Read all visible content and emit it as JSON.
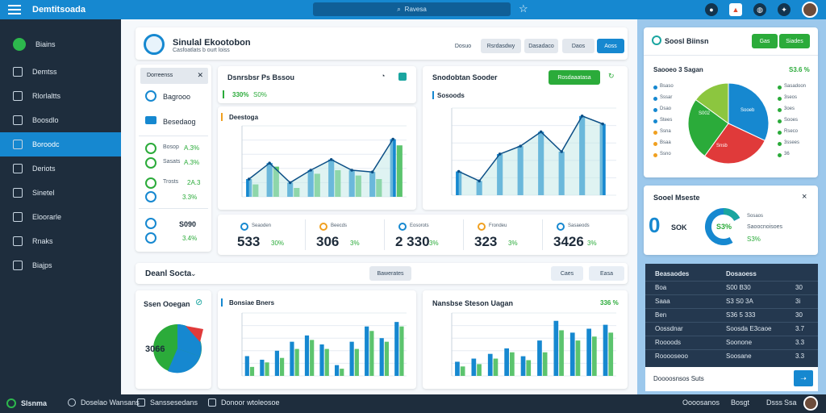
{
  "app": {
    "title": "Demtitsoada",
    "search_placeholder": "Ravesa"
  },
  "sidebar": {
    "items": [
      {
        "label": "Biains",
        "icon": "circle-logo-icon"
      },
      {
        "label": "Demtss",
        "icon": "home-icon"
      },
      {
        "label": "Rlorlaltts",
        "icon": "chart-icon"
      },
      {
        "label": "Boosdlo",
        "icon": "layers-icon"
      },
      {
        "label": "Boroodc",
        "icon": "house-icon"
      },
      {
        "label": "Deriots",
        "icon": "document-icon"
      },
      {
        "label": "Sinetel",
        "icon": "edit-icon"
      },
      {
        "label": "Eloorarle",
        "icon": "folder-icon"
      },
      {
        "label": "Rnaks",
        "icon": "grid-icon"
      },
      {
        "label": "Biajps",
        "icon": "search-icon"
      }
    ]
  },
  "header": {
    "title": "Sinulal Ekootobon",
    "subtitle": "Casfoatlats b ourt loiss",
    "buttons": [
      "Dosuo",
      "Rsrdasdwy",
      "Dasadaco",
      "Daos",
      "Aoss"
    ]
  },
  "leftcard": {
    "search": "Dorreenss",
    "items": [
      "Bagrooo",
      "Besedaog"
    ],
    "stats": [
      {
        "label": "Bosop",
        "value": "A.3%"
      },
      {
        "label": "Sasats",
        "value": "A.3%"
      },
      {
        "label": "Trosts",
        "value": "2A.3"
      }
    ],
    "values": [
      "3.3%",
      "S090",
      "3.4%"
    ]
  },
  "chart1": {
    "title": "Dsnrsbsr Ps Bssou",
    "pct": "330%",
    "pct2": "S0%",
    "sub": "Deestoga"
  },
  "chart2": {
    "title": "Snodobtan Sooder",
    "btn": "Rosdaaatasa",
    "sub": "Sosoods"
  },
  "kpis": [
    {
      "label": "Seaoden",
      "num": "533",
      "pct": "30%"
    },
    {
      "label": "Beecds",
      "num": "306",
      "pct": "3%"
    },
    {
      "label": "Eosorots",
      "num": "2 330",
      "pct": "3%"
    },
    {
      "label": "Frondeu",
      "num": "323",
      "pct": "3%"
    },
    {
      "label": "Sasaeods",
      "num": "3426",
      "pct": "3%"
    }
  ],
  "section2": {
    "title": "Deanl Socta",
    "pill1": "Bawerates",
    "pill2": "Caes",
    "pill3": "Easa"
  },
  "pie1": {
    "title": "Ssen Ooegan",
    "center": "3066"
  },
  "chart3": {
    "title": "Bonsiae Bners"
  },
  "chart4": {
    "title": "Nansbse Steson Uagan",
    "pct": "336 %"
  },
  "right1": {
    "title": "Soosl Biinsn",
    "btn1": "Gas",
    "btn2": "Siades",
    "sub": "Saooeo 3 Sagan",
    "pct": "S3.6 %",
    "legend_left": [
      "Bsaso",
      "Sssar",
      "Dsao",
      "Stees",
      "Ssna",
      "Bsaa",
      "Ssno"
    ],
    "legend_right": [
      "Sasadoon",
      "3seos",
      "3oes",
      "Sooes",
      "Rseco",
      "3ssees",
      "36"
    ],
    "pie_labels": [
      "Sooeb",
      "S002",
      "Snsb"
    ],
    "chart_data": {
      "type": "pie",
      "values": [
        32,
        28,
        25,
        15
      ],
      "colors": [
        "#1688d0",
        "#e03a3a",
        "#2bab3a",
        "#8cc63f"
      ]
    }
  },
  "right2": {
    "title": "Sooel Mseste",
    "big": "0",
    "big2": "SOK",
    "pct": "S3%",
    "sub": "Sosaos",
    "sub2": "Saoocnoisoes",
    "pct2": "S3%",
    "close": "×"
  },
  "table": {
    "rows": [
      {
        "a": "Beasaodes",
        "b": "Dosaoess",
        "c": ""
      },
      {
        "a": "Boa",
        "b": "S00 B30",
        "c": "30"
      },
      {
        "a": "Saaa",
        "b": "S3 S0 3A",
        "c": "3i"
      },
      {
        "a": "Ben",
        "b": "S36 5 333",
        "c": "30"
      },
      {
        "a": "Oossdnar",
        "b": "Soosda E3caoe",
        "c": "3.7"
      },
      {
        "a": "Roooods",
        "b": "Soonone",
        "c": "3.3"
      },
      {
        "a": "Rooooseoo",
        "b": "Soosane",
        "c": "3.3"
      }
    ],
    "footer_input": "Doooosnsos Suts"
  },
  "bottombar": {
    "items": [
      "Slsnma",
      "Doselao Wansans",
      "Sanssesedans",
      "Donoor wtoleosoe",
      "Oooosanos",
      "Bosgt",
      "Dsss",
      "Ssa"
    ]
  },
  "colors": {
    "accent": "#1688d0",
    "green": "#2bab3a",
    "red": "#e03a3a",
    "sidebar": "#1e2d3d"
  },
  "bar_charts": {
    "c1": {
      "blue": [
        20,
        38,
        16,
        30,
        42,
        30,
        28,
        65
      ],
      "green": [
        14,
        34,
        10,
        26,
        30,
        24,
        20,
        58
      ],
      "ylim": [
        0,
        80
      ]
    },
    "c2": {
      "blue": [
        30,
        18,
        52,
        62,
        80,
        55,
        100,
        90
      ],
      "green": [
        0,
        0,
        0,
        0,
        0,
        0,
        0,
        0
      ],
      "ylim": [
        0,
        110
      ]
    },
    "c3": {
      "blue": [
        22,
        18,
        28,
        38,
        45,
        35,
        12,
        38,
        55,
        42,
        60
      ],
      "green": [
        10,
        15,
        20,
        30,
        40,
        30,
        8,
        30,
        50,
        38,
        55
      ],
      "ylim": [
        0,
        70
      ]
    },
    "c4": {
      "blue": [
        18,
        22,
        28,
        35,
        25,
        45,
        70,
        55,
        60,
        65
      ],
      "green": [
        12,
        15,
        22,
        30,
        20,
        30,
        58,
        45,
        50,
        55
      ],
      "ylim": [
        0,
        80
      ]
    }
  }
}
